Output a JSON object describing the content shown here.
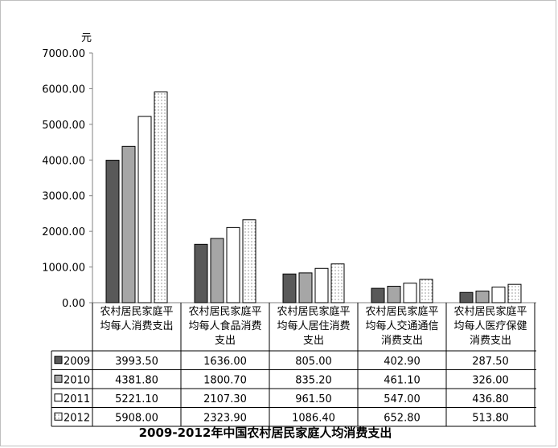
{
  "chart_data": {
    "type": "bar",
    "title": "2009-2012年中国农村居民家庭人均消费支出",
    "ylabel": "元",
    "ylim": [
      0,
      7000
    ],
    "yticks": [
      "0.00",
      "1000.00",
      "2000.00",
      "3000.00",
      "4000.00",
      "5000.00",
      "6000.00",
      "7000.00"
    ],
    "categories": [
      [
        "农村居民家庭平",
        "均每人消费支出"
      ],
      [
        "农村居民家庭平",
        "均每人食品消费",
        "支出"
      ],
      [
        "农村居民家庭平",
        "均每人居住消费",
        "支出"
      ],
      [
        "农村居民家庭平",
        "均每人交通通信",
        "消费支出"
      ],
      [
        "农村居民家庭平",
        "均每人医疗保健",
        "消费支出"
      ]
    ],
    "series": [
      {
        "name": "2009",
        "values": [
          3993.5,
          1636.0,
          805.0,
          402.9,
          287.5
        ],
        "display": [
          "3993.50",
          "1636.00",
          "805.00",
          "402.90",
          "287.50"
        ],
        "fill": "#595959",
        "pattern": "solid"
      },
      {
        "name": "2010",
        "values": [
          4381.8,
          1800.7,
          835.2,
          461.1,
          326.0
        ],
        "display": [
          "4381.80",
          "1800.70",
          "835.20",
          "461.10",
          "326.00"
        ],
        "fill": "#a6a6a6",
        "pattern": "solid"
      },
      {
        "name": "2011",
        "values": [
          5221.1,
          2107.3,
          961.5,
          547.0,
          436.8
        ],
        "display": [
          "5221.10",
          "2107.30",
          "961.50",
          "547.00",
          "436.80"
        ],
        "fill": "#ffffff",
        "pattern": "solid"
      },
      {
        "name": "2012",
        "values": [
          5908.0,
          2323.9,
          1086.4,
          652.8,
          513.8
        ],
        "display": [
          "5908.00",
          "2323.90",
          "1086.40",
          "652.80",
          "513.80"
        ],
        "fill": "#ffffff",
        "pattern": "dots"
      }
    ],
    "grid": false,
    "legend": "data-table"
  }
}
